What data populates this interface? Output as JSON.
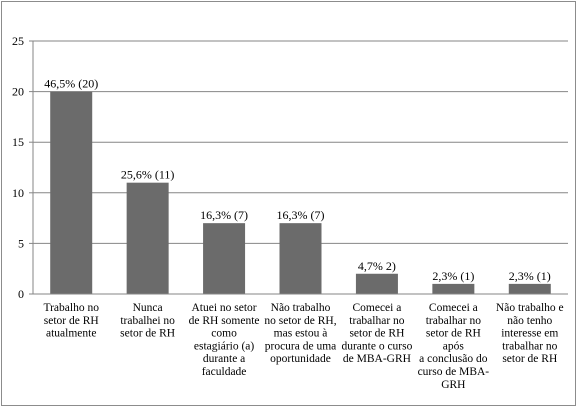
{
  "chart_data": {
    "type": "bar",
    "categories": [
      [
        "Trabalho no",
        "setor de RH",
        "atualmente"
      ],
      [
        "Nunca",
        "trabalhei no",
        "setor de RH"
      ],
      [
        "Atuei no setor",
        "de RH somente",
        "como",
        "estagiário (a)",
        "durante a",
        "faculdade"
      ],
      [
        "Não trabalho",
        "no setor de RH,",
        "mas estou à",
        "procura de uma",
        "oportunidade"
      ],
      [
        "Comecei a",
        "trabalhar no",
        "setor de RH",
        "durante o curso",
        "de MBA-GRH"
      ],
      [
        "Comecei a",
        "trabalhar no",
        "setor de RH",
        "após",
        "a conclusão do",
        "curso de MBA-",
        "GRH"
      ],
      [
        "Não trabalho e",
        "não tenho",
        "interesse em",
        "trabalhar no",
        "setor de RH"
      ]
    ],
    "values": [
      20,
      11,
      7,
      7,
      2,
      1,
      1
    ],
    "data_labels": [
      "46,5% (20)",
      "25,6% (11)",
      "16,3% (7)",
      "16,3% (7)",
      "4,7% 2)",
      "2,3% (1)",
      "2,3% (1)"
    ],
    "y_ticks": [
      "0",
      "5",
      "10",
      "15",
      "20",
      "25"
    ],
    "ylim": [
      0,
      25
    ],
    "grid": true,
    "bar_color": "#6b6b6b",
    "grid_color": "#868686"
  }
}
